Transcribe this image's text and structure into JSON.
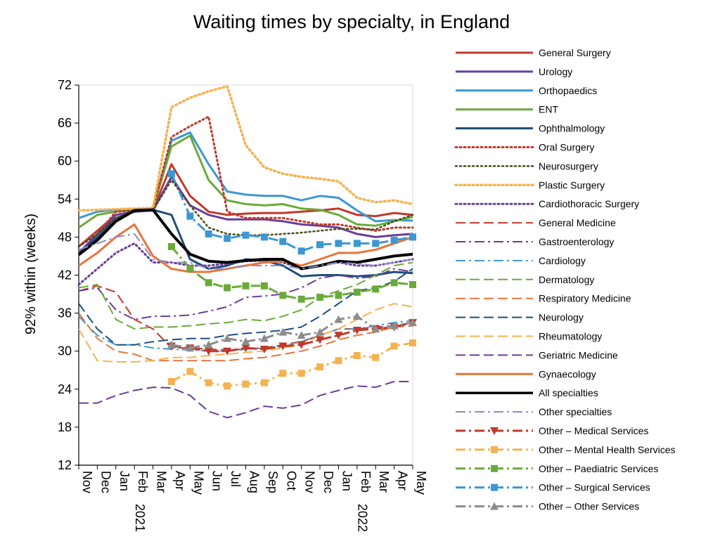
{
  "chart_data": {
    "type": "line",
    "title": "Waiting times by specialty, in England",
    "xlabel": "",
    "ylabel": "92% within (weeks)",
    "ylim": [
      12,
      72
    ],
    "yticks": [
      12,
      18,
      24,
      30,
      36,
      42,
      48,
      54,
      60,
      66,
      72
    ],
    "grid": false,
    "legend_position": "right",
    "categories": [
      "Nov",
      "Dec",
      "Jan",
      "Feb",
      "Mar",
      "Apr",
      "May",
      "Jun",
      "Jul",
      "Aug",
      "Sep",
      "Oct",
      "Nov",
      "Dec",
      "Jan",
      "Feb",
      "Mar",
      "Apr",
      "May"
    ],
    "year_labels": [
      {
        "index": 2,
        "label": "2021"
      },
      {
        "index": 14,
        "label": "2022"
      }
    ],
    "series": [
      {
        "name": "General Surgery",
        "color": "#c0392b",
        "style": "solid",
        "width": 3,
        "values": [
          46.5,
          49,
          51.5,
          52,
          52.2,
          59.5,
          54.5,
          52,
          51.5,
          51.7,
          51.8,
          51.8,
          52,
          52.2,
          52.5,
          51.5,
          51.3,
          51.8,
          51.5
        ]
      },
      {
        "name": "Urology",
        "color": "#6a3d9a",
        "style": "solid",
        "width": 3,
        "values": [
          45.5,
          48.5,
          51.5,
          52,
          52.2,
          57.5,
          53,
          51.5,
          50.8,
          50.8,
          50.8,
          50.5,
          50,
          49.8,
          49.5,
          48.5,
          48,
          48.3,
          48.5
        ]
      },
      {
        "name": "Orthopaedics",
        "color": "#3c97d3",
        "style": "solid",
        "width": 3,
        "values": [
          51,
          52,
          52.3,
          52.4,
          52.5,
          63.2,
          64.5,
          59.5,
          55.2,
          54.7,
          54.5,
          54.5,
          53.8,
          54.5,
          54.2,
          52.2,
          50.5,
          50.7,
          50.6
        ]
      },
      {
        "name": "ENT",
        "color": "#6aaa3a",
        "style": "solid",
        "width": 3,
        "values": [
          49.5,
          51.5,
          52,
          52.3,
          52.5,
          62.3,
          64,
          57,
          53.8,
          53.2,
          53,
          53.2,
          52.5,
          52.3,
          51.5,
          50,
          49.8,
          50.5,
          51.2
        ]
      },
      {
        "name": "Ophthalmology",
        "color": "#1f4e79",
        "style": "solid",
        "width": 3,
        "values": [
          45.3,
          48,
          51,
          52,
          52.3,
          51.5,
          44.5,
          43,
          43.5,
          44.5,
          44.3,
          43.5,
          41.8,
          42,
          42,
          41.8,
          42,
          42.5,
          42.3
        ]
      },
      {
        "name": "Oral Surgery",
        "color": "#c0392b",
        "style": "dot",
        "width": 3,
        "values": [
          46.5,
          48.5,
          52,
          52.2,
          52.5,
          63.8,
          65.5,
          67,
          52,
          51,
          51,
          51,
          50.5,
          50,
          50,
          49.5,
          49,
          49.5,
          49.5
        ]
      },
      {
        "name": "Neurosurgery",
        "color": "#4a4a1a",
        "style": "dot",
        "width": 2.5,
        "values": [
          46.5,
          48.5,
          51,
          52,
          52.2,
          57,
          53,
          49.5,
          48.5,
          48.3,
          48.3,
          48.5,
          48.7,
          49,
          49.3,
          49.3,
          49.2,
          50.5,
          51.5
        ]
      },
      {
        "name": "Plastic Surgery",
        "color": "#f4b350",
        "style": "dot",
        "width": 3.5,
        "values": [
          52.2,
          52.3,
          52.4,
          52.5,
          52.6,
          68.5,
          70,
          71,
          71.8,
          62.5,
          59,
          58,
          57.5,
          57.2,
          56.8,
          54.2,
          53.5,
          53.8,
          53.2
        ]
      },
      {
        "name": "Cardiothoracic Surgery",
        "color": "#6a3d9a",
        "style": "dot",
        "width": 3,
        "values": [
          40.5,
          43,
          45.5,
          47,
          44,
          44,
          43.5,
          43.5,
          43.8,
          44.2,
          44.3,
          44,
          43,
          43.5,
          44,
          43.5,
          43.5,
          44,
          44.5
        ]
      },
      {
        "name": "General Medicine",
        "color": "#c0392b",
        "style": "dash",
        "width": 2,
        "values": [
          39.5,
          40.3,
          39.3,
          35,
          33.5,
          30.5,
          30.5,
          30.3,
          30.2,
          30.3,
          30.5,
          31,
          31.5,
          32.5,
          33.5,
          33.5,
          33.8,
          34,
          34.5
        ]
      },
      {
        "name": "Gastroenterology",
        "color": "#6a3d9a",
        "style": "dashdot",
        "width": 2,
        "values": [
          39.5,
          40,
          36.5,
          35,
          35.5,
          35.5,
          35.7,
          36.3,
          37,
          38.5,
          38.7,
          39,
          40,
          41.5,
          42,
          41.5,
          41.8,
          43,
          42.5
        ]
      },
      {
        "name": "Cardiology",
        "color": "#3c97d3",
        "style": "dashdot",
        "width": 2,
        "values": [
          35.5,
          32.5,
          31,
          31,
          30.5,
          30.3,
          30.2,
          30,
          30,
          30.3,
          30.5,
          30.8,
          31.5,
          32.5,
          33.5,
          33.5,
          34,
          34.5,
          34.8
        ]
      },
      {
        "name": "Dermatology",
        "color": "#6aaa3a",
        "style": "dash",
        "width": 2,
        "values": [
          40,
          40.5,
          35,
          33.5,
          33.8,
          33.8,
          34,
          34.3,
          34.5,
          35,
          34.8,
          35.5,
          36.5,
          38.5,
          39.5,
          40.5,
          42,
          43.5,
          44
        ]
      },
      {
        "name": "Respiratory Medicine",
        "color": "#e8743b",
        "style": "dash",
        "width": 2,
        "values": [
          36,
          32,
          30,
          29.5,
          28.5,
          28.5,
          28.5,
          28.5,
          28.5,
          28.8,
          29,
          29.5,
          30,
          30.8,
          31.8,
          32.5,
          33,
          33.8,
          34
        ]
      },
      {
        "name": "Neurology",
        "color": "#1f4e79",
        "style": "dash",
        "width": 2,
        "values": [
          37.5,
          33.5,
          31,
          31,
          31.5,
          31.8,
          32,
          32,
          32.5,
          32.8,
          33,
          33.3,
          33.8,
          35.5,
          37.5,
          39.5,
          40,
          41,
          43
        ]
      },
      {
        "name": "Rheumatology",
        "color": "#f4b350",
        "style": "dash",
        "width": 2,
        "values": [
          33.5,
          28.5,
          28.3,
          28.3,
          28.5,
          29,
          29,
          29.3,
          29.5,
          29.8,
          30,
          30.5,
          31,
          32.5,
          33.5,
          35,
          36.5,
          37.5,
          37
        ]
      },
      {
        "name": "Geriatric Medicine",
        "color": "#6a3d9a",
        "style": "dash",
        "width": 2,
        "values": [
          21.8,
          21.8,
          23,
          23.8,
          24.3,
          24.2,
          23,
          20.5,
          19.5,
          20.3,
          21.3,
          21,
          21.5,
          23,
          23.8,
          24.5,
          24.3,
          25.2,
          25.2
        ]
      },
      {
        "name": "Gynaecology",
        "color": "#e8743b",
        "style": "solid",
        "width": 3,
        "values": [
          43.5,
          45.5,
          48,
          50,
          45,
          43,
          42.5,
          42.5,
          43,
          43.5,
          44,
          44.2,
          43.5,
          44.5,
          45.5,
          45.5,
          46,
          47,
          48
        ]
      },
      {
        "name": "All specialties",
        "color": "#000000",
        "style": "solid",
        "width": 4,
        "values": [
          45.2,
          47.5,
          50.5,
          52.2,
          52.3,
          48.5,
          45.3,
          44.2,
          44,
          44.3,
          44.5,
          44.5,
          43,
          43.5,
          44.2,
          44,
          44.5,
          45,
          45.3
        ]
      },
      {
        "name": "Other specialties",
        "color": "#8a8ac8",
        "style": "dashdot",
        "width": 2,
        "values": [
          46,
          47,
          48,
          48.5,
          44.5,
          44,
          44,
          43,
          43,
          43.5,
          43.5,
          43.5,
          43,
          43.5,
          44,
          43.8,
          43.5,
          44,
          44.5
        ]
      },
      {
        "name": "Other – Medical Services",
        "color": "#c0392b",
        "style": "dashdot",
        "width": 3,
        "marker": "triangle-down",
        "marker_from": 5,
        "values": [
          null,
          null,
          null,
          null,
          null,
          30.8,
          30.5,
          30,
          30,
          30.5,
          30.3,
          30.8,
          31,
          31.8,
          32.5,
          33.3,
          33.5,
          33.8,
          34.5
        ]
      },
      {
        "name": "Other – Mental Health Services",
        "color": "#f4b350",
        "style": "dashdot",
        "width": 3,
        "marker": "square",
        "marker_from": 5,
        "values": [
          null,
          null,
          null,
          null,
          null,
          25.2,
          26.8,
          25,
          24.5,
          24.8,
          25,
          26.5,
          26.5,
          27.5,
          28.5,
          29.3,
          29,
          30.8,
          31.3
        ]
      },
      {
        "name": "Other – Paediatric Services",
        "color": "#6aaa3a",
        "style": "dashdot",
        "width": 3,
        "marker": "square",
        "marker_from": 5,
        "values": [
          null,
          null,
          null,
          null,
          null,
          46.5,
          43,
          40.8,
          40,
          40.3,
          40.3,
          38.8,
          38.2,
          38.5,
          38.8,
          39.3,
          39.8,
          40.8,
          40.5
        ]
      },
      {
        "name": "Other – Surgical Services",
        "color": "#3c97d3",
        "style": "dashdot",
        "width": 3,
        "marker": "square",
        "marker_from": 5,
        "values": [
          null,
          null,
          null,
          null,
          null,
          58,
          51.3,
          48.5,
          47.8,
          48.3,
          48,
          47.3,
          45.8,
          46.8,
          47,
          47,
          47,
          47.5,
          48
        ]
      },
      {
        "name": "Other – Other Services",
        "color": "#8c8c8c",
        "style": "dashdot",
        "width": 3,
        "marker": "triangle-up",
        "marker_from": 5,
        "values": [
          null,
          null,
          null,
          null,
          null,
          31,
          30.5,
          31,
          32,
          31.5,
          32,
          33,
          32.5,
          33,
          35,
          35.5,
          33.5,
          34,
          34.5
        ]
      }
    ]
  }
}
